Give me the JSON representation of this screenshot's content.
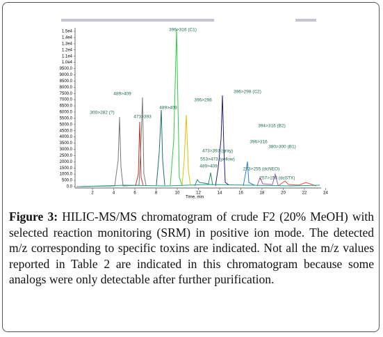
{
  "figure": {
    "chart": {
      "yticks": [
        "1.5e4",
        "1.4e4",
        "1.3e4",
        "1.2e4",
        "1.1e4",
        "1.0e4",
        "9500.0",
        "9000.0",
        "8500.0",
        "8000.0",
        "7500.0",
        "7000.0",
        "6500.0",
        "6000.0",
        "5500.0",
        "5000.0",
        "4500.0",
        "4000.0",
        "3500.0",
        "3000.0",
        "2500.0",
        "2000.0",
        "1500.0",
        "1000.0",
        "500.0",
        "0.0"
      ],
      "xticks": [
        "2",
        "4",
        "6",
        "8",
        "10",
        "12",
        "14",
        "16",
        "18",
        "20",
        "22",
        "24"
      ],
      "x_label": "Time, min",
      "peaks": [
        "396>316 (C1)",
        "489>409",
        "300>282 (?)",
        "473>393",
        "489>409",
        "396>298",
        "396>298 (C2)",
        "394>316 (B2)",
        "396>316",
        "380>300 (B1)",
        "473>393 (gray)",
        "553>473 (yellow)",
        "489>409",
        "273>255 (dcNEO)",
        "257>156 (dcSTX)"
      ]
    },
    "caption": {
      "label": "Figure 3:",
      "text": "HILIC-MS/MS chromatogram of crude F2 (20% MeOH) with selected reaction monitoring (SRM) in positive ion mode. The detected m/z corresponding to specific toxins are indicated. Not all the m/z values reported in Table 2 are indicated in this chromatogram because some analogs were only detectable after further purification."
    }
  }
}
